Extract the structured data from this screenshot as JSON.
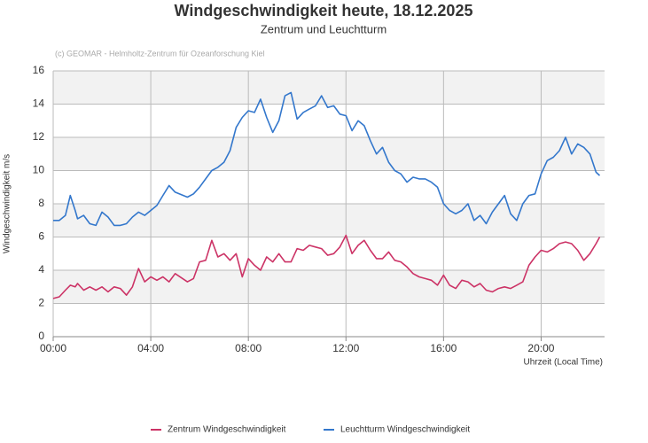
{
  "chart_data": {
    "type": "line",
    "title": "Windgeschwindigkeit heute, 18.12.2025",
    "subtitle": "Zentrum und Leuchtturm",
    "credit": "(c) GEOMAR - Helmholtz-Zentrum für Ozeanforschung Kiel",
    "y_label": "Windgeschwindigkeit m/s",
    "x_label": "Uhrzeit (Local Time)",
    "x": [
      0,
      0.25,
      0.5,
      0.7,
      0.9,
      1.0,
      1.25,
      1.5,
      1.75,
      2.0,
      2.25,
      2.5,
      2.75,
      3.0,
      3.25,
      3.5,
      3.75,
      4.0,
      4.25,
      4.5,
      4.75,
      5.0,
      5.5,
      5.75,
      6.0,
      6.25,
      6.5,
      6.75,
      7.0,
      7.25,
      7.5,
      7.75,
      8.0,
      8.25,
      8.5,
      8.75,
      9.0,
      9.25,
      9.5,
      9.75,
      10.0,
      10.25,
      10.5,
      10.75,
      11.0,
      11.25,
      11.5,
      11.75,
      12.0,
      12.25,
      12.5,
      12.75,
      13.0,
      13.25,
      13.5,
      13.75,
      14.0,
      14.25,
      14.5,
      14.75,
      15.0,
      15.25,
      15.5,
      15.75,
      16.0,
      16.25,
      16.5,
      16.75,
      17.0,
      17.25,
      17.5,
      17.75,
      18.0,
      18.25,
      18.5,
      18.75,
      19.0,
      19.25,
      19.5,
      19.75,
      20.0,
      20.25,
      20.5,
      20.75,
      21.0,
      21.25,
      21.5,
      21.75,
      22.0,
      22.25,
      22.4
    ],
    "series": [
      {
        "name": "Zentrum Windgeschwindigkeit",
        "color": "#cc3366",
        "values": [
          2.3,
          2.4,
          2.8,
          3.1,
          3.0,
          3.2,
          2.8,
          3.0,
          2.8,
          3.0,
          2.7,
          3.0,
          2.9,
          2.5,
          3.0,
          4.1,
          3.3,
          3.6,
          3.4,
          3.6,
          3.3,
          3.8,
          3.3,
          3.5,
          4.5,
          4.6,
          5.8,
          4.8,
          5.0,
          4.6,
          5.0,
          3.6,
          4.7,
          4.3,
          4.0,
          4.8,
          4.5,
          5.0,
          4.5,
          4.5,
          5.3,
          5.2,
          5.5,
          5.4,
          5.3,
          4.9,
          5.0,
          5.4,
          6.1,
          5.0,
          5.5,
          5.8,
          5.2,
          4.7,
          4.7,
          5.1,
          4.6,
          4.5,
          4.2,
          3.8,
          3.6,
          3.5,
          3.4,
          3.1,
          3.7,
          3.1,
          2.9,
          3.4,
          3.3,
          3.0,
          3.2,
          2.8,
          2.7,
          2.9,
          3.0,
          2.9,
          3.1,
          3.3,
          4.3,
          4.8,
          5.2,
          5.1,
          5.3,
          5.6,
          5.7,
          5.6,
          5.2,
          4.6,
          5.0,
          5.6,
          6.0
        ]
      },
      {
        "name": "Leuchtturm Windgeschwindigkeit",
        "color": "#3377cc",
        "values": [
          7.0,
          7.0,
          7.3,
          8.5,
          7.6,
          7.1,
          7.3,
          6.8,
          6.7,
          7.5,
          7.2,
          6.7,
          6.7,
          6.8,
          7.2,
          7.5,
          7.3,
          7.6,
          7.9,
          8.5,
          9.1,
          8.7,
          8.4,
          8.6,
          9.0,
          9.5,
          10.0,
          10.2,
          10.5,
          11.2,
          12.6,
          13.2,
          13.6,
          13.5,
          14.3,
          13.2,
          12.3,
          13.0,
          14.5,
          14.7,
          13.1,
          13.5,
          13.7,
          13.9,
          14.5,
          13.8,
          13.9,
          13.4,
          13.3,
          12.4,
          13.0,
          12.7,
          11.8,
          11.0,
          11.4,
          10.5,
          10.0,
          9.8,
          9.3,
          9.6,
          9.5,
          9.5,
          9.3,
          9.0,
          8.0,
          7.6,
          7.4,
          7.6,
          8.0,
          7.0,
          7.3,
          6.8,
          7.5,
          8.0,
          8.5,
          7.4,
          7.0,
          8.0,
          8.5,
          8.6,
          9.8,
          10.6,
          10.8,
          11.2,
          12.0,
          11.0,
          11.6,
          11.4,
          11.0,
          9.9,
          9.7
        ]
      }
    ],
    "xlim": [
      0,
      22.6
    ],
    "xticks": [
      {
        "value": 0,
        "label": "00:00"
      },
      {
        "value": 4,
        "label": "04:00"
      },
      {
        "value": 8,
        "label": "08:00"
      },
      {
        "value": 12,
        "label": "12:00"
      },
      {
        "value": 16,
        "label": "16:00"
      },
      {
        "value": 20,
        "label": "20:00"
      }
    ],
    "ylim": [
      0,
      16
    ],
    "yticks": [
      0,
      2,
      4,
      6,
      8,
      10,
      12,
      14,
      16
    ],
    "grid": true,
    "legend": "bottom"
  }
}
